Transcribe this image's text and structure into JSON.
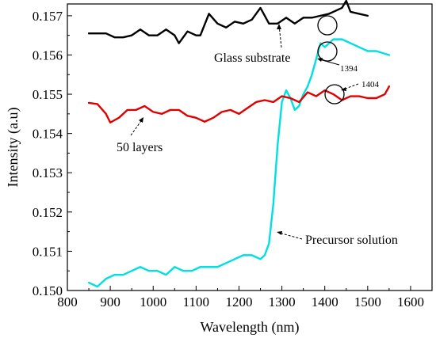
{
  "chart_data": {
    "type": "line",
    "title": "",
    "xlabel": "Wavelength (nm)",
    "ylabel": "Intensity (a.u)",
    "xlim": [
      800,
      1650
    ],
    "ylim": [
      0.15,
      0.1573
    ],
    "x_ticks": [
      800,
      900,
      1000,
      1100,
      1200,
      1300,
      1400,
      1500,
      1600
    ],
    "y_ticks": [
      0.15,
      0.151,
      0.152,
      0.153,
      0.154,
      0.155,
      0.156,
      0.157
    ],
    "x_tick_labels": [
      "800",
      "900",
      "1000",
      "1100",
      "1200",
      "1300",
      "1400",
      "1500",
      "1600"
    ],
    "y_tick_labels": [
      "0.150",
      "0.151",
      "0.152",
      "0.153",
      "0.154",
      "0.155",
      "0.156",
      "0.157"
    ],
    "grid": false,
    "series": [
      {
        "name": "Glass substrate",
        "color": "#000000",
        "x": [
          850,
          870,
          890,
          910,
          930,
          950,
          970,
          990,
          1010,
          1030,
          1050,
          1060,
          1080,
          1100,
          1110,
          1130,
          1150,
          1170,
          1190,
          1210,
          1230,
          1250,
          1270,
          1290,
          1310,
          1330,
          1350,
          1370,
          1390,
          1410,
          1420,
          1440,
          1450,
          1460,
          1480,
          1500
        ],
        "y": [
          0.15655,
          0.15655,
          0.15655,
          0.15645,
          0.15645,
          0.1565,
          0.15665,
          0.1565,
          0.1565,
          0.15665,
          0.1565,
          0.1563,
          0.1566,
          0.1565,
          0.1565,
          0.15705,
          0.1568,
          0.1567,
          0.15685,
          0.1568,
          0.1569,
          0.1572,
          0.1568,
          0.1568,
          0.15695,
          0.1568,
          0.15695,
          0.15695,
          0.157,
          0.15705,
          0.1571,
          0.1572,
          0.15738,
          0.1571,
          0.15705,
          0.157
        ]
      },
      {
        "name": "Precursor solution",
        "color": "#00e0e0",
        "x": [
          850,
          870,
          890,
          910,
          930,
          950,
          970,
          990,
          1010,
          1030,
          1050,
          1070,
          1090,
          1110,
          1130,
          1150,
          1170,
          1190,
          1210,
          1230,
          1250,
          1260,
          1270,
          1280,
          1290,
          1300,
          1310,
          1320,
          1330,
          1340,
          1350,
          1360,
          1370,
          1380,
          1390,
          1400,
          1410,
          1420,
          1440,
          1460,
          1480,
          1500,
          1520,
          1550
        ],
        "y": [
          0.1502,
          0.1501,
          0.1503,
          0.1504,
          0.1504,
          0.1505,
          0.1506,
          0.1505,
          0.1505,
          0.1504,
          0.1506,
          0.1505,
          0.1505,
          0.1506,
          0.1506,
          0.1506,
          0.1507,
          0.1508,
          0.1509,
          0.1509,
          0.1508,
          0.1509,
          0.1512,
          0.1522,
          0.1537,
          0.1548,
          0.1551,
          0.1549,
          0.1546,
          0.1547,
          0.155,
          0.1552,
          0.1555,
          0.1559,
          0.1563,
          0.1562,
          0.1563,
          0.1564,
          0.1564,
          0.1563,
          0.1562,
          0.1561,
          0.1561,
          0.156
        ]
      },
      {
        "name": "50 layers",
        "color": "#e00000",
        "x": [
          850,
          870,
          890,
          900,
          920,
          940,
          960,
          980,
          1000,
          1020,
          1040,
          1060,
          1080,
          1100,
          1120,
          1140,
          1160,
          1180,
          1200,
          1220,
          1240,
          1260,
          1280,
          1300,
          1320,
          1340,
          1360,
          1380,
          1400,
          1420,
          1440,
          1460,
          1480,
          1500,
          1520,
          1540,
          1550
        ],
        "y": [
          0.15478,
          0.15475,
          0.1545,
          0.15428,
          0.1544,
          0.1546,
          0.1546,
          0.1547,
          0.15455,
          0.1545,
          0.1546,
          0.1546,
          0.15445,
          0.1544,
          0.1543,
          0.1544,
          0.15455,
          0.1546,
          0.1545,
          0.15465,
          0.1548,
          0.15485,
          0.1548,
          0.15495,
          0.1549,
          0.1548,
          0.15505,
          0.15495,
          0.1551,
          0.155,
          0.15485,
          0.15495,
          0.15495,
          0.1549,
          0.1549,
          0.155,
          0.1552
        ]
      }
    ],
    "annotations": {
      "glass_label": "Glass substrate",
      "precursor_label": "Precursor solution",
      "layers_label": "50 layers",
      "label_1394": "1394",
      "label_1404": "1404"
    }
  }
}
